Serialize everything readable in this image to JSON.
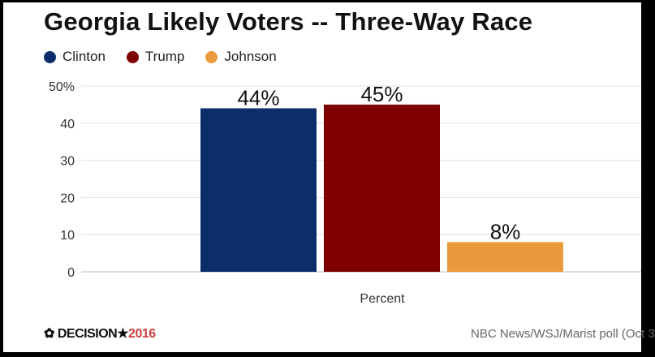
{
  "chart_data": {
    "type": "bar",
    "title": "Georgia Likely Voters -- Three-Way Race",
    "categories": [
      "Percent"
    ],
    "xlabel": "Percent",
    "series": [
      {
        "name": "Clinton",
        "values": [
          44
        ],
        "label": "44%",
        "color": "#0b2e6b"
      },
      {
        "name": "Trump",
        "values": [
          45
        ],
        "label": "45%",
        "color": "#7f0000"
      },
      {
        "name": "Johnson",
        "values": [
          8
        ],
        "label": "8%",
        "color": "#e89a3c"
      }
    ],
    "ylim": [
      0,
      50
    ],
    "yticks": [
      0,
      10,
      20,
      30,
      40,
      50
    ],
    "ytick_labels": [
      "0",
      "10",
      "20",
      "30",
      "40",
      "50%"
    ],
    "grid": true,
    "legend": "top-left"
  },
  "footer": {
    "logo_text": "DECISION",
    "logo_star": "★",
    "logo_year": "2016",
    "source": "NBC News/WSJ/Marist poll (Oct 3"
  }
}
